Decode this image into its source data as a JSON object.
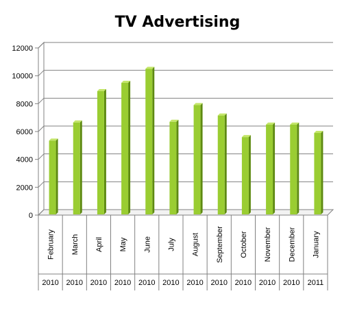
{
  "chart_data": {
    "type": "bar",
    "title": "TV Advertising",
    "categories": [
      "February",
      "March",
      "April",
      "May",
      "June",
      "July",
      "August",
      "September",
      "October",
      "November",
      "December",
      "January"
    ],
    "years": [
      "2010",
      "2010",
      "2010",
      "2010",
      "2010",
      "2010",
      "2010",
      "2010",
      "2010",
      "2010",
      "2010",
      "2011"
    ],
    "values": [
      5300,
      6600,
      8850,
      9450,
      10450,
      6650,
      7850,
      7100,
      5550,
      6450,
      6450,
      5850
    ],
    "ylim": [
      0,
      12000
    ],
    "yticks": [
      0,
      2000,
      4000,
      6000,
      8000,
      10000,
      12000
    ],
    "xlabel": "",
    "ylabel": "",
    "grid": true,
    "bar_color": "#9acd32",
    "bar_side_color": "#5e8a12",
    "bar_top_color": "#c4e66a"
  }
}
